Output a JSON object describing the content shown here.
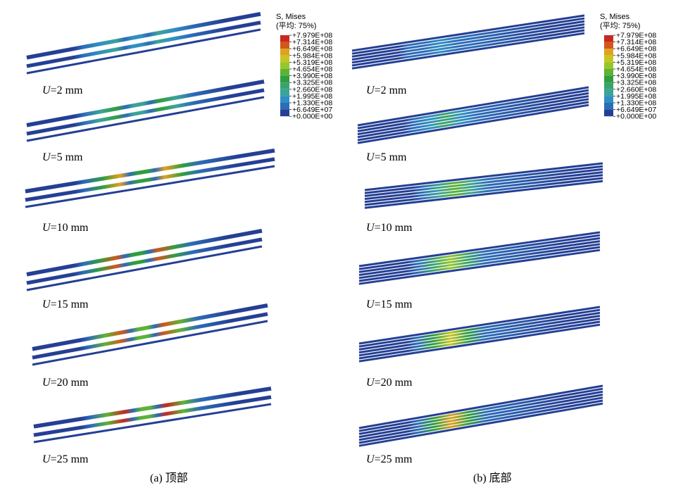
{
  "legend": {
    "title_line1": "S, Mises",
    "title_line2": "(平均: 75%)",
    "ticks": [
      "+7.979E+08",
      "+7.314E+08",
      "+6.649E+08",
      "+5.984E+08",
      "+5.319E+08",
      "+4.654E+08",
      "+3.990E+08",
      "+3.325E+08",
      "+2.660E+08",
      "+1.995E+08",
      "+1.330E+08",
      "+6.649E+07",
      "+0.000E+00"
    ],
    "colors": [
      "#c8281e",
      "#d2581a",
      "#e0a11e",
      "#c9c51f",
      "#96c62c",
      "#5cb334",
      "#2f9e3e",
      "#3aa36c",
      "#3aa39a",
      "#2f8fc2",
      "#2c6cb8",
      "#243f94"
    ]
  },
  "panels": [
    {
      "id": "top",
      "caption": "(a) 顶部",
      "sims": [
        {
          "u_var": "U",
          "u_val": "=2 mm",
          "peak": 0.25
        },
        {
          "u_var": "U",
          "u_val": "=5 mm",
          "peak": 0.5
        },
        {
          "u_var": "U",
          "u_val": "=10 mm",
          "peak": 0.85
        },
        {
          "u_var": "U",
          "u_val": "=15 mm",
          "peak": 0.9
        },
        {
          "u_var": "U",
          "u_val": "=20 mm",
          "peak": 0.95
        },
        {
          "u_var": "U",
          "u_val": "=25 mm",
          "peak": 1.0
        }
      ]
    },
    {
      "id": "bottom",
      "caption": "(b) 底部",
      "sims": [
        {
          "u_var": "U",
          "u_val": "=2 mm",
          "peak": 0.15
        },
        {
          "u_var": "U",
          "u_val": "=5 mm",
          "peak": 0.35
        },
        {
          "u_var": "U",
          "u_val": "=10 mm",
          "peak": 0.55
        },
        {
          "u_var": "U",
          "u_val": "=15 mm",
          "peak": 0.65
        },
        {
          "u_var": "U",
          "u_val": "=20 mm",
          "peak": 0.75
        },
        {
          "u_var": "U",
          "u_val": "=25 mm",
          "peak": 0.8
        }
      ]
    }
  ]
}
